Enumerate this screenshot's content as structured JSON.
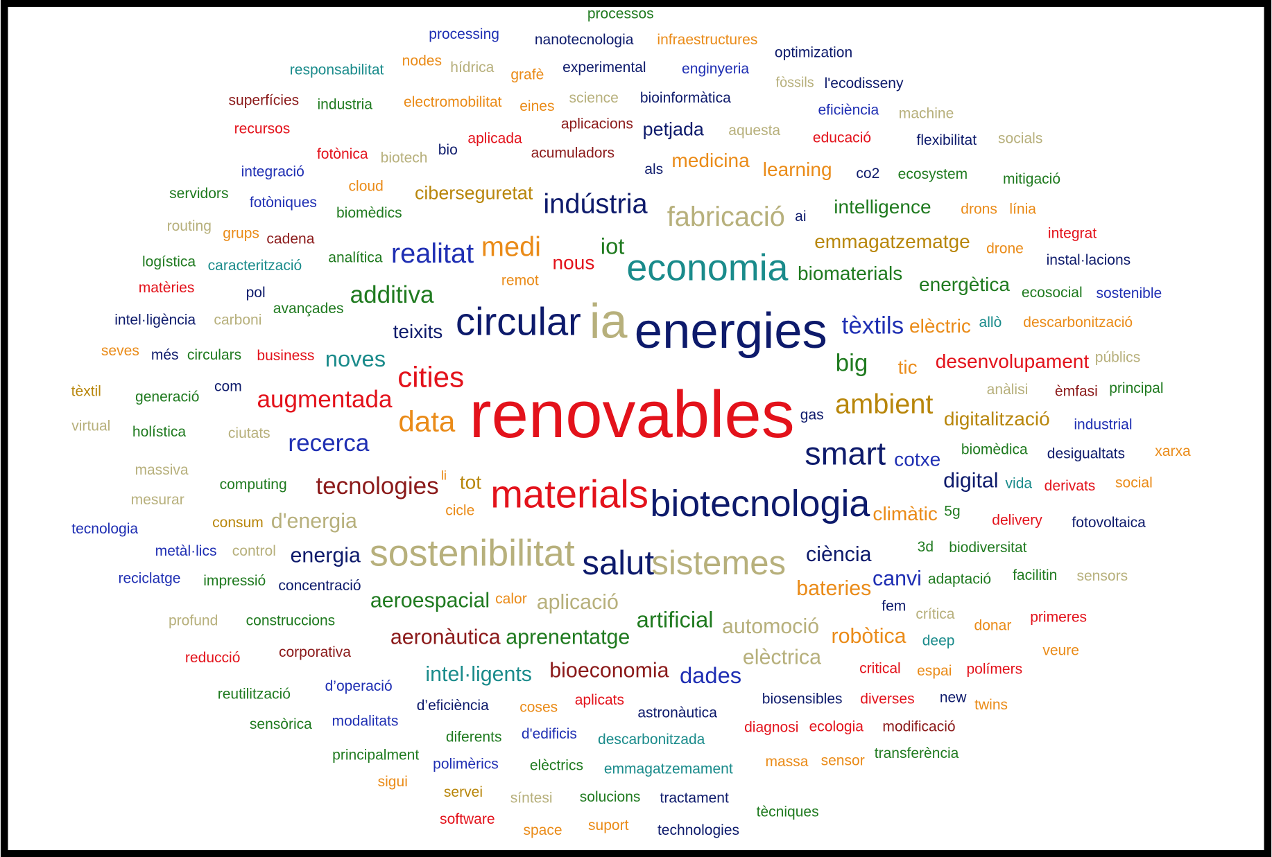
{
  "words": [
    "processos",
    "processing",
    "nanotecnologia",
    "infraestructures",
    "optimization",
    "responsabilitat",
    "nodes",
    "hídrica",
    "grafè",
    "experimental",
    "enginyeria",
    "fòssils",
    "l'ecodisseny",
    "superfícies",
    "industria",
    "electromobilitat",
    "eines",
    "science",
    "bioinformàtica",
    "eficiència",
    "machine",
    "recursos",
    "aplicacions",
    "petjada",
    "aquesta",
    "educació",
    "flexibilitat",
    "socials",
    "fotònica",
    "biotech",
    "bio",
    "aplicada",
    "acumuladors",
    "als",
    "medicina",
    "learning",
    "co2",
    "ecosystem",
    "mitigació",
    "integració",
    "servidors",
    "fotòniques",
    "cloud",
    "biomèdics",
    "ciberseguretat",
    "indústria",
    "fabricació",
    "ai",
    "intelligence",
    "drons",
    "línia",
    "routing",
    "grups",
    "cadena",
    "emmagatzematge",
    "drone",
    "integrat",
    "logística",
    "caracterització",
    "analítica",
    "realitat",
    "medi",
    "iot",
    "nous",
    "economia",
    "biomaterials",
    "instal·lacions",
    "matèries",
    "pol",
    "remot",
    "additiva",
    "energètica",
    "ecosocial",
    "sostenible",
    "intel·ligència",
    "carboni",
    "avançades",
    "teixits",
    "circular",
    "ia",
    "energies",
    "tèxtils",
    "elèctric",
    "allò",
    "descarbonització",
    "seves",
    "més",
    "circulars",
    "business",
    "noves",
    "big",
    "tic",
    "desenvolupament",
    "públics",
    "cities",
    "tèxtil",
    "generació",
    "com",
    "augmentada",
    "renovables",
    "ambient",
    "anàlisi",
    "èmfasi",
    "principal",
    "gas",
    "virtual",
    "holística",
    "ciutats",
    "data",
    "digitalització",
    "industrial",
    "recerca",
    "smart",
    "cotxe",
    "biomèdica",
    "desigualtats",
    "xarxa",
    "massiva",
    "li",
    "tot",
    "computing",
    "tecnologies",
    "materials",
    "biotecnologia",
    "digital",
    "vida",
    "derivats",
    "social",
    "mesurar",
    "cicle",
    "climàtic",
    "5g",
    "delivery",
    "fotovoltaica",
    "tecnologia",
    "consum",
    "d'energia",
    "metàl·lics",
    "control",
    "energia",
    "sostenibilitat",
    "salut",
    "sistemes",
    "ciència",
    "3d",
    "biodiversitat",
    "reciclatge",
    "impressió",
    "concentració",
    "bateries",
    "canvi",
    "adaptació",
    "facilitin",
    "sensors",
    "aeroespacial",
    "calor",
    "aplicació",
    "fem",
    "crítica",
    "profund",
    "construccions",
    "artificial",
    "automoció",
    "donar",
    "primeres",
    "aeronàutica",
    "aprenentatge",
    "robòtica",
    "deep",
    "veure",
    "reducció",
    "corporativa",
    "elèctrica",
    "intel·ligents",
    "bioeconomia",
    "dades",
    "critical",
    "espai",
    "polímers",
    "reutilització",
    "d’operació",
    "d’eficiència",
    "coses",
    "aplicats",
    "astronàutica",
    "biosensibles",
    "diverses",
    "new",
    "twins",
    "sensòrica",
    "modalitats",
    "diferents",
    "d'edificis",
    "descarbonitzada",
    "diagnosi",
    "ecologia",
    "modificació",
    "principalment",
    "polimèrics",
    "elèctrics",
    "emmagatzemament",
    "massa",
    "sensor",
    "transferència",
    "sigui",
    "servei",
    "síntesi",
    "solucions",
    "tractament",
    "tècniques",
    "software",
    "space",
    "suport",
    "technologies"
  ]
}
